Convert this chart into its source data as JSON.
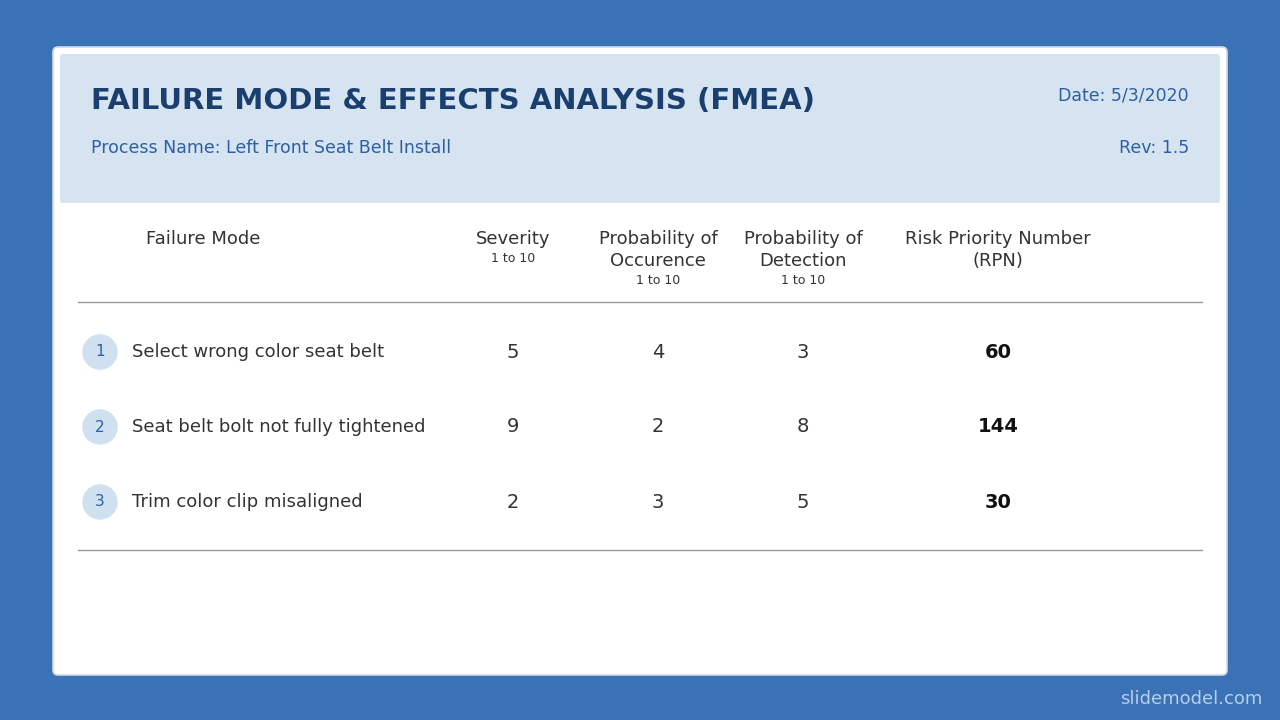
{
  "bg_color": "#3a72b5",
  "card_color": "#ffffff",
  "header_color": "#d6e4f1",
  "title": "FAILURE MODE & EFFECTS ANALYSIS (FMEA)",
  "title_color": "#1a3f6f",
  "process_label": "Process Name: Left Front Seat Belt Install",
  "date_label": "Date: 5/3/2020",
  "rev_label": "Rev: 1.5",
  "meta_color": "#2e5fa3",
  "col_headers": [
    {
      "line1": "Failure Mode",
      "line2": "",
      "line3": ""
    },
    {
      "line1": "Severity",
      "line2": "1 to 10",
      "line3": ""
    },
    {
      "line1": "Probability of",
      "line2": "Occurence",
      "line3": "1 to 10"
    },
    {
      "line1": "Probability of",
      "line2": "Detection",
      "line3": "1 to 10"
    },
    {
      "line1": "Risk Priority Number",
      "line2": "(RPN)",
      "line3": ""
    }
  ],
  "col_header_color": "#333333",
  "rows": [
    {
      "num": "1",
      "mode": "Select wrong color seat belt",
      "severity": "5",
      "occurrence": "4",
      "detection": "3",
      "rpn": "60"
    },
    {
      "num": "2",
      "mode": "Seat belt bolt not fully tightened",
      "severity": "9",
      "occurrence": "2",
      "detection": "8",
      "rpn": "144"
    },
    {
      "num": "3",
      "mode": "Trim color clip misaligned",
      "severity": "2",
      "occurrence": "3",
      "detection": "5",
      "rpn": "30"
    }
  ],
  "num_circle_color": "#cfe0f0",
  "num_text_color": "#2e5fa3",
  "data_color": "#333333",
  "rpn_color": "#111111",
  "separator_color": "#999999",
  "watermark": "slidemodel.com",
  "watermark_color": "#b8ceea"
}
